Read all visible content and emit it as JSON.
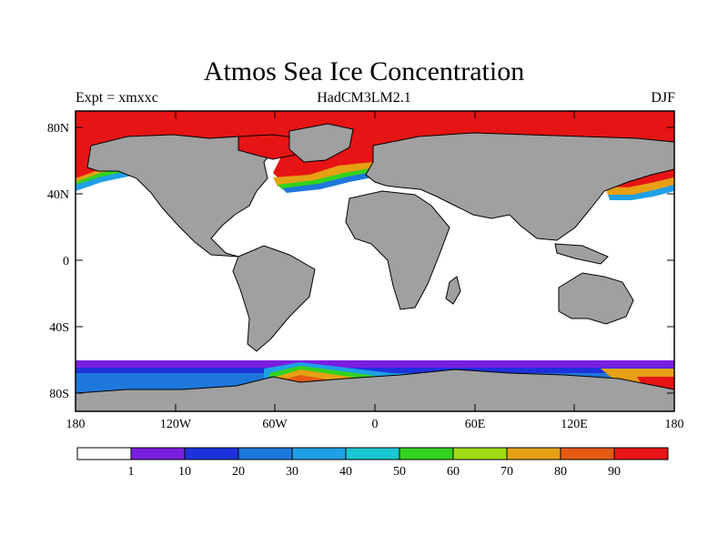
{
  "title": "Atmos Sea Ice Concentration",
  "subtitle": {
    "left": "Expt = xmxxc",
    "center": "HadCM3LM2.1",
    "right": "DJF"
  },
  "axes": {
    "lat_labels": [
      "80N",
      "40N",
      "0",
      "40S",
      "80S"
    ],
    "lon_labels": [
      "180",
      "120W",
      "60W",
      "0",
      "60E",
      "120E",
      "180"
    ]
  },
  "colorbar": {
    "labels": [
      "1",
      "10",
      "20",
      "30",
      "40",
      "50",
      "60",
      "70",
      "80",
      "90"
    ],
    "colors": [
      "#ffffff",
      "#7a1ee0",
      "#1e32dc",
      "#1e78dc",
      "#1ea0e6",
      "#18c8d2",
      "#32d21e",
      "#a0dc14",
      "#e6a014",
      "#e65a14",
      "#e61414"
    ]
  },
  "map_colors": {
    "land": "#a0a0a0",
    "ice_high": "#e61414",
    "ocean": "#ffffff"
  }
}
